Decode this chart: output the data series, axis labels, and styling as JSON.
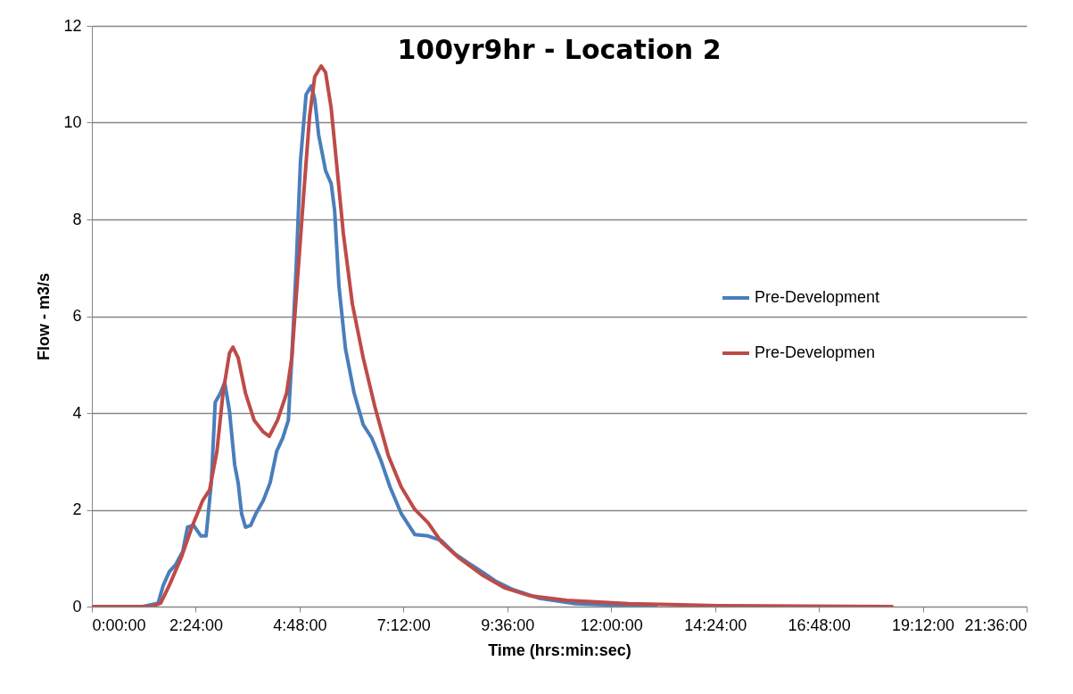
{
  "chart_data": {
    "type": "line",
    "title": "100yr9hr - Location 2",
    "xlabel": "Time (hrs:min:sec)",
    "ylabel": "Flow - m3/s",
    "xlim": [
      0,
      21.6
    ],
    "ylim": [
      0,
      12
    ],
    "xticks": [
      {
        "value": 0,
        "label": "0:00:00"
      },
      {
        "value": 2.4,
        "label": "2:24:00"
      },
      {
        "value": 4.8,
        "label": "4:48:00"
      },
      {
        "value": 7.2,
        "label": "7:12:00"
      },
      {
        "value": 9.6,
        "label": "9:36:00"
      },
      {
        "value": 12,
        "label": "12:00:00"
      },
      {
        "value": 14.4,
        "label": "14:24:00"
      },
      {
        "value": 16.8,
        "label": "16:48:00"
      },
      {
        "value": 19.2,
        "label": "19:12:00"
      },
      {
        "value": 21.6,
        "label": "21:36:00"
      }
    ],
    "yticks": [
      0,
      2,
      4,
      6,
      8,
      10,
      12
    ],
    "grid": "y",
    "legend": "right",
    "marker": "none",
    "line_style": "solid",
    "series": [
      {
        "name": "Pre-Development",
        "color": "#4a7ebb",
        "x": [
          0,
          1.18,
          1.53,
          1.65,
          1.79,
          1.94,
          2.1,
          2.21,
          2.35,
          2.52,
          2.64,
          2.76,
          2.85,
          2.97,
          3.07,
          3.18,
          3.3,
          3.38,
          3.46,
          3.55,
          3.67,
          3.79,
          3.96,
          4.12,
          4.27,
          4.41,
          4.54,
          4.62,
          4.72,
          4.82,
          4.95,
          5.07,
          5.15,
          5.24,
          5.4,
          5.53,
          5.61,
          5.71,
          5.86,
          6.06,
          6.27,
          6.47,
          6.68,
          6.89,
          7.15,
          7.46,
          7.77,
          8.08,
          8.39,
          8.7,
          9.01,
          9.32,
          9.73,
          10.35,
          11.18,
          12.41,
          13.03
        ],
        "values": [
          0,
          0,
          0.07,
          0.44,
          0.72,
          0.87,
          1.14,
          1.64,
          1.68,
          1.46,
          1.46,
          2.56,
          4.22,
          4.41,
          4.63,
          4.04,
          2.93,
          2.56,
          1.92,
          1.64,
          1.68,
          1.92,
          2.19,
          2.56,
          3.21,
          3.48,
          3.85,
          5.14,
          6.99,
          9.2,
          10.58,
          10.76,
          10.49,
          9.75,
          9.01,
          8.74,
          8.18,
          6.62,
          5.33,
          4.41,
          3.76,
          3.48,
          3.02,
          2.47,
          1.92,
          1.49,
          1.46,
          1.36,
          1.09,
          0.9,
          0.72,
          0.53,
          0.35,
          0.17,
          0.06,
          0.02,
          0
        ]
      },
      {
        "name": "Pre-Developmen",
        "color": "#be4b48",
        "x": [
          0,
          1.38,
          1.59,
          1.79,
          2.06,
          2.31,
          2.56,
          2.72,
          2.89,
          3.03,
          3.18,
          3.26,
          3.38,
          3.55,
          3.75,
          3.96,
          4.1,
          4.29,
          4.5,
          4.62,
          4.74,
          4.89,
          5.03,
          5.15,
          5.3,
          5.4,
          5.53,
          5.65,
          5.81,
          6.02,
          6.27,
          6.54,
          6.85,
          7.15,
          7.46,
          7.77,
          8.08,
          8.49,
          9.01,
          9.53,
          10.14,
          10.97,
          12.41,
          14.47,
          18.49
        ],
        "values": [
          0,
          0,
          0.07,
          0.44,
          1.0,
          1.64,
          2.19,
          2.41,
          3.21,
          4.41,
          5.24,
          5.36,
          5.14,
          4.41,
          3.85,
          3.61,
          3.52,
          3.85,
          4.41,
          5.14,
          6.62,
          8.46,
          10.12,
          10.95,
          11.17,
          11.04,
          10.3,
          9.2,
          7.72,
          6.25,
          5.14,
          4.13,
          3.12,
          2.47,
          2.01,
          1.73,
          1.33,
          1.0,
          0.66,
          0.39,
          0.22,
          0.13,
          0.06,
          0.02,
          0
        ]
      }
    ]
  }
}
